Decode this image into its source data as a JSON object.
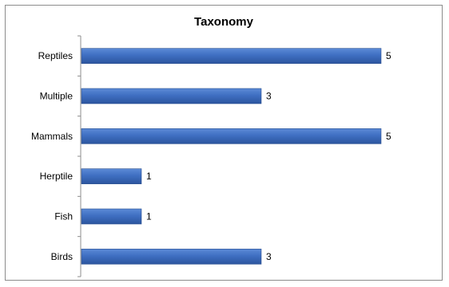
{
  "chart_data": {
    "type": "bar",
    "orientation": "horizontal",
    "title": "Taxonomy",
    "xlabel": "",
    "ylabel": "",
    "categories": [
      "Birds",
      "Fish",
      "Herptile",
      "Mammals",
      "Multiple",
      "Reptiles"
    ],
    "values": [
      3,
      1,
      1,
      5,
      3,
      5
    ],
    "xlim": [
      0,
      5
    ],
    "grid": false,
    "legend": "none",
    "bar_color": "#4472C4",
    "data_labels": true
  }
}
